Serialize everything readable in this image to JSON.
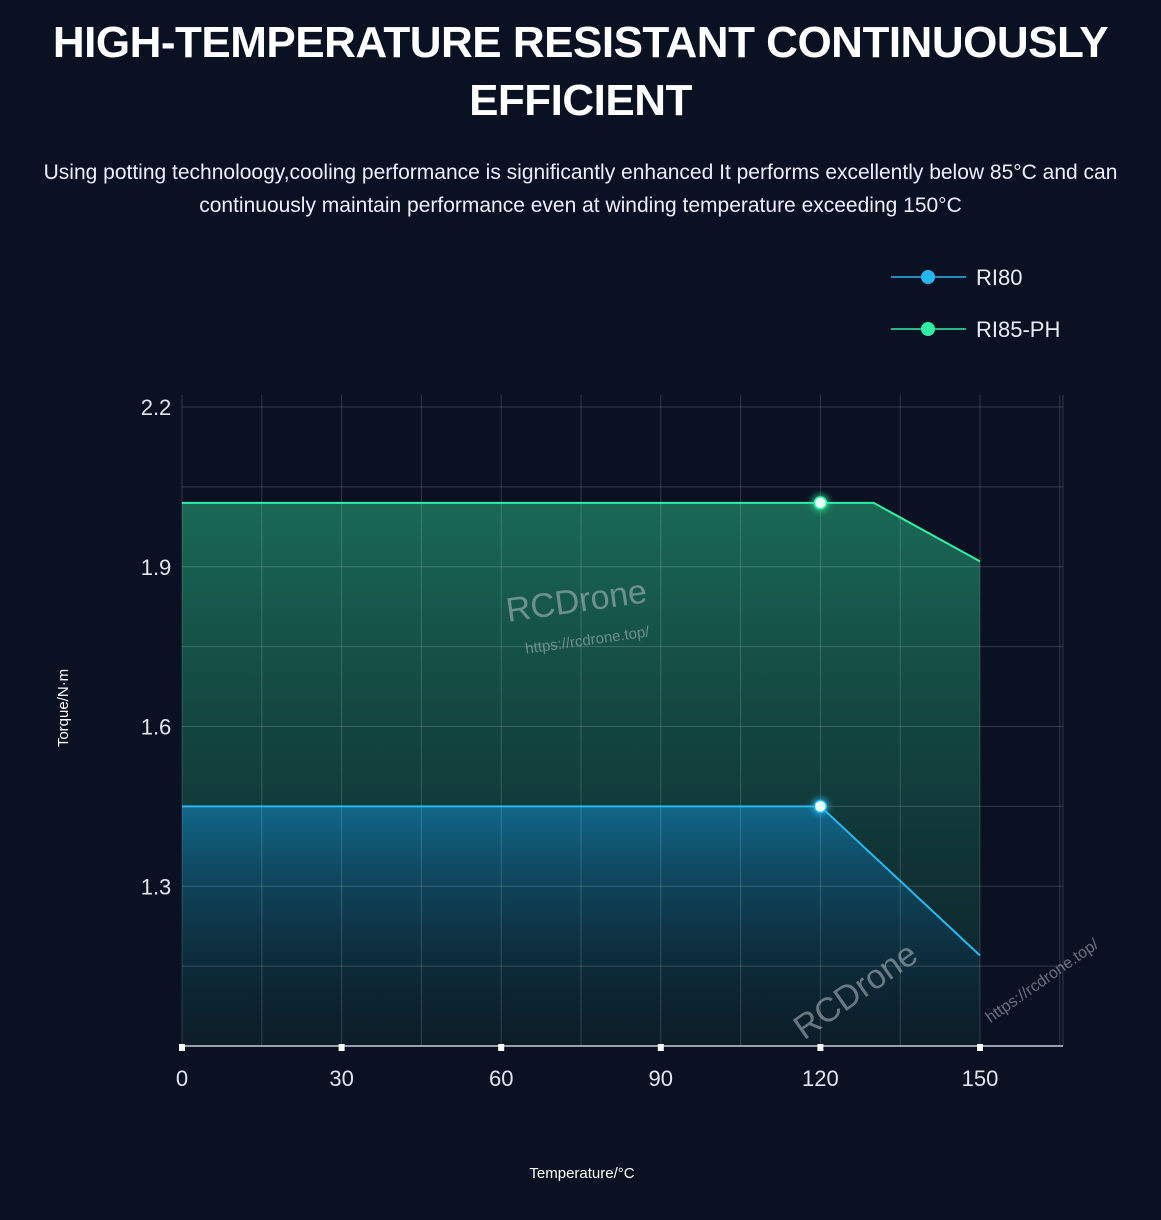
{
  "header": {
    "title": "HIGH-TEMPERATURE RESISTANT CONTINUOUSLY EFFICIENT",
    "subtitle": "Using potting technoloogy,cooling performance is significantly enhanced It performs excellently below 85°C and can continuously maintain performance even at winding temperature exceeding 150°C"
  },
  "watermark": {
    "brand": "RCDrone",
    "url": "https://rcdrone.top/"
  },
  "chart_data": {
    "type": "area",
    "xlabel": "Temperature/°C",
    "ylabel": "Torque/N·m",
    "xlim": [
      0,
      166
    ],
    "ylim": [
      1.0,
      2.2
    ],
    "xticks": [
      0,
      30,
      60,
      90,
      120,
      150
    ],
    "yticks": [
      1.3,
      1.6,
      1.9,
      2.2
    ],
    "grid": true,
    "legend_position": "top-right",
    "series": [
      {
        "name": "RI80",
        "color": "#25b8f0",
        "x": [
          0,
          120,
          150
        ],
        "y": [
          1.45,
          1.45,
          1.17
        ],
        "marker_x": 120,
        "marker_y": 1.45
      },
      {
        "name": "RI85-PH",
        "color": "#2ef0a0",
        "x": [
          0,
          130,
          150
        ],
        "y": [
          2.02,
          2.02,
          1.91
        ],
        "marker_x": 120,
        "marker_y": 2.02
      }
    ]
  }
}
